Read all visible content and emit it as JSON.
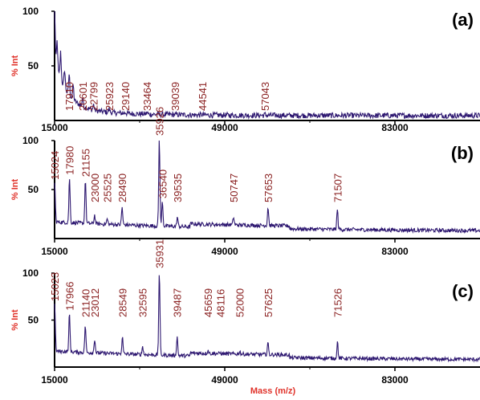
{
  "colors": {
    "trace": "#2d1770",
    "peak_label": "#8b2323",
    "axis_title": "#e0322a",
    "axis": "#000000"
  },
  "x_axis": {
    "title": "Mass (m/z)",
    "range": [
      15000,
      100000
    ],
    "ticks": [
      15000,
      49000,
      83000
    ],
    "tick_labels": [
      "15000",
      "49000",
      "83000"
    ]
  },
  "y_axis": {
    "title": "% Int",
    "ticks": [
      50,
      100
    ],
    "tick_labels": [
      "50",
      "100"
    ]
  },
  "chart_data": [
    {
      "type": "line",
      "panel": "(a)",
      "xlabel": "",
      "ylabel": "% Int",
      "xlim": [
        15000,
        100000
      ],
      "ylim": [
        0,
        100
      ],
      "grid": false,
      "peaks": [
        {
          "mass": 15000,
          "intensity": 100,
          "label": ""
        },
        {
          "mass": 15500,
          "intensity": 70,
          "label": ""
        },
        {
          "mass": 16200,
          "intensity": 60,
          "label": ""
        },
        {
          "mass": 17000,
          "intensity": 44,
          "label": ""
        },
        {
          "mass": 17910,
          "intensity": 40,
          "label": "17910"
        },
        {
          "mass": 18700,
          "intensity": 30,
          "label": ""
        },
        {
          "mass": 20601,
          "intensity": 18,
          "label": "20601"
        },
        {
          "mass": 22799,
          "intensity": 12,
          "label": "22799"
        },
        {
          "mass": 25923,
          "intensity": 8,
          "label": "25923"
        },
        {
          "mass": 29140,
          "intensity": 5,
          "label": "29140"
        },
        {
          "mass": 33464,
          "intensity": 5,
          "label": "33464"
        },
        {
          "mass": 39039,
          "intensity": 3,
          "label": "39039"
        },
        {
          "mass": 44541,
          "intensity": 3,
          "label": "44541"
        },
        {
          "mass": 57043,
          "intensity": 3,
          "label": "57043"
        }
      ]
    },
    {
      "type": "line",
      "panel": "(b)",
      "xlabel": "",
      "ylabel": "% Int",
      "xlim": [
        15000,
        100000
      ],
      "ylim": [
        0,
        100
      ],
      "grid": false,
      "peaks": [
        {
          "mass": 15024,
          "intensity": 55,
          "label": "15024"
        },
        {
          "mass": 17980,
          "intensity": 60,
          "label": "17980"
        },
        {
          "mass": 21155,
          "intensity": 58,
          "label": "21155"
        },
        {
          "mass": 23000,
          "intensity": 22,
          "label": "23000"
        },
        {
          "mass": 25525,
          "intensity": 18,
          "label": "25525"
        },
        {
          "mass": 28490,
          "intensity": 30,
          "label": "28490"
        },
        {
          "mass": 35926,
          "intensity": 100,
          "label": "35926"
        },
        {
          "mass": 36540,
          "intensity": 36,
          "label": "36540"
        },
        {
          "mass": 39535,
          "intensity": 20,
          "label": "39535"
        },
        {
          "mass": 50747,
          "intensity": 20,
          "label": "50747"
        },
        {
          "mass": 57653,
          "intensity": 30,
          "label": "57653"
        },
        {
          "mass": 71507,
          "intensity": 28,
          "label": "71507"
        }
      ]
    },
    {
      "type": "line",
      "panel": "(c)",
      "xlabel": "Mass (m/z)",
      "ylabel": "% Int",
      "xlim": [
        15000,
        100000
      ],
      "ylim": [
        0,
        100
      ],
      "grid": false,
      "peaks": [
        {
          "mass": 15023,
          "intensity": 65,
          "label": "15023"
        },
        {
          "mass": 17966,
          "intensity": 55,
          "label": "17966"
        },
        {
          "mass": 21140,
          "intensity": 42,
          "label": "21140"
        },
        {
          "mass": 23012,
          "intensity": 28,
          "label": "23012"
        },
        {
          "mass": 28549,
          "intensity": 30,
          "label": "28549"
        },
        {
          "mass": 32595,
          "intensity": 20,
          "label": "32595"
        },
        {
          "mass": 35931,
          "intensity": 100,
          "label": "35931"
        },
        {
          "mass": 39487,
          "intensity": 30,
          "label": "39487"
        },
        {
          "mass": 45659,
          "intensity": 16,
          "label": "45659"
        },
        {
          "mass": 48116,
          "intensity": 13,
          "label": "48116"
        },
        {
          "mass": 52000,
          "intensity": 15,
          "label": "52000"
        },
        {
          "mass": 57625,
          "intensity": 24,
          "label": "57625"
        },
        {
          "mass": 71526,
          "intensity": 25,
          "label": "71526"
        }
      ]
    }
  ]
}
